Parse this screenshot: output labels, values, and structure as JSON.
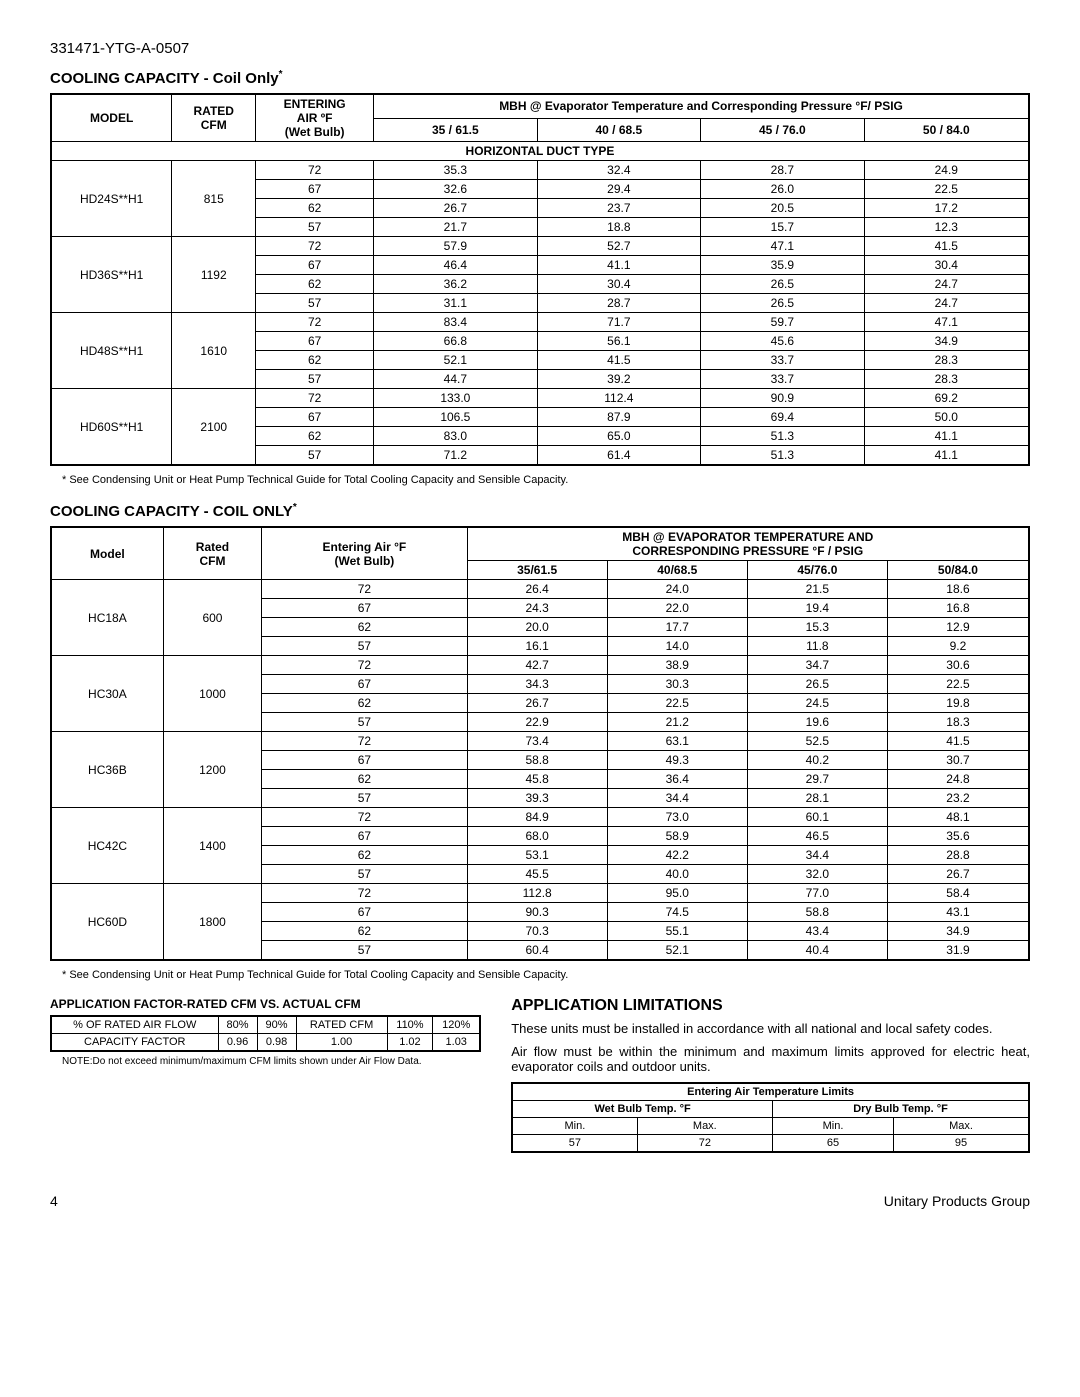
{
  "doc_id": "331471-YTG-A-0507",
  "section1": {
    "title": "COOLING CAPACITY - Coil Only",
    "asterisk": "*",
    "headers": {
      "model": "MODEL",
      "rated_cfm_line1": "RATED",
      "rated_cfm_line2": "CFM",
      "entering_line1": "ENTERING",
      "entering_line2": "AIR  ºF",
      "entering_line3": "(Wet Bulb)",
      "mbh": "MBH @ Evaporator Temperature and Corresponding Pressure °F/ PSIG",
      "col1": "35 / 61.5",
      "col2": "40 / 68.5",
      "col3": "45 / 76.0",
      "col4": "50 / 84.0",
      "section_label": "HORIZONTAL DUCT TYPE"
    },
    "groups": [
      {
        "model": "HD24S**H1",
        "cfm": "815",
        "rows": [
          {
            "wb": "72",
            "c1": "35.3",
            "c2": "32.4",
            "c3": "28.7",
            "c4": "24.9"
          },
          {
            "wb": "67",
            "c1": "32.6",
            "c2": "29.4",
            "c3": "26.0",
            "c4": "22.5"
          },
          {
            "wb": "62",
            "c1": "26.7",
            "c2": "23.7",
            "c3": "20.5",
            "c4": "17.2"
          },
          {
            "wb": "57",
            "c1": "21.7",
            "c2": "18.8",
            "c3": "15.7",
            "c4": "12.3"
          }
        ]
      },
      {
        "model": "HD36S**H1",
        "cfm": "1192",
        "rows": [
          {
            "wb": "72",
            "c1": "57.9",
            "c2": "52.7",
            "c3": "47.1",
            "c4": "41.5"
          },
          {
            "wb": "67",
            "c1": "46.4",
            "c2": "41.1",
            "c3": "35.9",
            "c4": "30.4"
          },
          {
            "wb": "62",
            "c1": "36.2",
            "c2": "30.4",
            "c3": "26.5",
            "c4": "24.7"
          },
          {
            "wb": "57",
            "c1": "31.1",
            "c2": "28.7",
            "c3": "26.5",
            "c4": "24.7"
          }
        ]
      },
      {
        "model": "HD48S**H1",
        "cfm": "1610",
        "rows": [
          {
            "wb": "72",
            "c1": "83.4",
            "c2": "71.7",
            "c3": "59.7",
            "c4": "47.1"
          },
          {
            "wb": "67",
            "c1": "66.8",
            "c2": "56.1",
            "c3": "45.6",
            "c4": "34.9"
          },
          {
            "wb": "62",
            "c1": "52.1",
            "c2": "41.5",
            "c3": "33.7",
            "c4": "28.3"
          },
          {
            "wb": "57",
            "c1": "44.7",
            "c2": "39.2",
            "c3": "33.7",
            "c4": "28.3"
          }
        ]
      },
      {
        "model": "HD60S**H1",
        "cfm": "2100",
        "rows": [
          {
            "wb": "72",
            "c1": "133.0",
            "c2": "112.4",
            "c3": "90.9",
            "c4": "69.2"
          },
          {
            "wb": "67",
            "c1": "106.5",
            "c2": "87.9",
            "c3": "69.4",
            "c4": "50.0"
          },
          {
            "wb": "62",
            "c1": "83.0",
            "c2": "65.0",
            "c3": "51.3",
            "c4": "41.1"
          },
          {
            "wb": "57",
            "c1": "71.2",
            "c2": "61.4",
            "c3": "51.3",
            "c4": "41.1"
          }
        ]
      }
    ],
    "footnote": "* See Condensing Unit or Heat Pump Technical Guide for Total Cooling Capacity and Sensible Capacity."
  },
  "section2": {
    "title": "COOLING CAPACITY - COIL ONLY",
    "asterisk": "*",
    "headers": {
      "model": "Model",
      "rated_cfm_line1": "Rated",
      "rated_cfm_line2": "CFM",
      "entering_line1": "Entering Air °F",
      "entering_line2": "(Wet Bulb)",
      "mbh_line1": "MBH @ EVAPORATOR TEMPERATURE AND",
      "mbh_line2": "CORRESPONDING PRESSURE °F / PSIG",
      "col1": "35/61.5",
      "col2": "40/68.5",
      "col3": "45/76.0",
      "col4": "50/84.0"
    },
    "groups": [
      {
        "model": "HC18A",
        "cfm": "600",
        "rows": [
          {
            "wb": "72",
            "c1": "26.4",
            "c2": "24.0",
            "c3": "21.5",
            "c4": "18.6"
          },
          {
            "wb": "67",
            "c1": "24.3",
            "c2": "22.0",
            "c3": "19.4",
            "c4": "16.8"
          },
          {
            "wb": "62",
            "c1": "20.0",
            "c2": "17.7",
            "c3": "15.3",
            "c4": "12.9"
          },
          {
            "wb": "57",
            "c1": "16.1",
            "c2": "14.0",
            "c3": "11.8",
            "c4": "9.2"
          }
        ]
      },
      {
        "model": "HC30A",
        "cfm": "1000",
        "rows": [
          {
            "wb": "72",
            "c1": "42.7",
            "c2": "38.9",
            "c3": "34.7",
            "c4": "30.6"
          },
          {
            "wb": "67",
            "c1": "34.3",
            "c2": "30.3",
            "c3": "26.5",
            "c4": "22.5"
          },
          {
            "wb": "62",
            "c1": "26.7",
            "c2": "22.5",
            "c3": "24.5",
            "c4": "19.8"
          },
          {
            "wb": "57",
            "c1": "22.9",
            "c2": "21.2",
            "c3": "19.6",
            "c4": "18.3"
          }
        ]
      },
      {
        "model": "HC36B",
        "cfm": "1200",
        "rows": [
          {
            "wb": "72",
            "c1": "73.4",
            "c2": "63.1",
            "c3": "52.5",
            "c4": "41.5"
          },
          {
            "wb": "67",
            "c1": "58.8",
            "c2": "49.3",
            "c3": "40.2",
            "c4": "30.7"
          },
          {
            "wb": "62",
            "c1": "45.8",
            "c2": "36.4",
            "c3": "29.7",
            "c4": "24.8"
          },
          {
            "wb": "57",
            "c1": "39.3",
            "c2": "34.4",
            "c3": "28.1",
            "c4": "23.2"
          }
        ]
      },
      {
        "model": "HC42C",
        "cfm": "1400",
        "rows": [
          {
            "wb": "72",
            "c1": "84.9",
            "c2": "73.0",
            "c3": "60.1",
            "c4": "48.1"
          },
          {
            "wb": "67",
            "c1": "68.0",
            "c2": "58.9",
            "c3": "46.5",
            "c4": "35.6"
          },
          {
            "wb": "62",
            "c1": "53.1",
            "c2": "42.2",
            "c3": "34.4",
            "c4": "28.8"
          },
          {
            "wb": "57",
            "c1": "45.5",
            "c2": "40.0",
            "c3": "32.0",
            "c4": "26.7"
          }
        ]
      },
      {
        "model": "HC60D",
        "cfm": "1800",
        "rows": [
          {
            "wb": "72",
            "c1": "112.8",
            "c2": "95.0",
            "c3": "77.0",
            "c4": "58.4"
          },
          {
            "wb": "67",
            "c1": "90.3",
            "c2": "74.5",
            "c3": "58.8",
            "c4": "43.1"
          },
          {
            "wb": "62",
            "c1": "70.3",
            "c2": "55.1",
            "c3": "43.4",
            "c4": "34.9"
          },
          {
            "wb": "57",
            "c1": "60.4",
            "c2": "52.1",
            "c3": "40.4",
            "c4": "31.9"
          }
        ]
      }
    ],
    "footnote": "* See Condensing Unit or Heat Pump Technical Guide for Total Cooling Capacity and Sensible Capacity."
  },
  "app_factor": {
    "title": "APPLICATION FACTOR-RATED CFM VS. ACTUAL CFM",
    "row1": [
      "% OF RATED AIR FLOW",
      "80%",
      "90%",
      "RATED CFM",
      "110%",
      "120%"
    ],
    "row2": [
      "CAPACITY FACTOR",
      "0.96",
      "0.98",
      "1.00",
      "1.02",
      "1.03"
    ],
    "note": "NOTE:Do not exceed minimum/maximum CFM limits shown under Air Flow Data."
  },
  "app_limits": {
    "title": "APPLICATION LIMITATIONS",
    "p1": "These units must be installed in accordance with all national and local safety codes.",
    "p2": "Air flow must be within the minimum and maximum limits approved for electric heat, evaporator coils and outdoor units.",
    "table_title": "Entering Air Temperature Limits",
    "h_wet": "Wet Bulb Temp. °F",
    "h_dry": "Dry Bulb Temp. °F",
    "min": "Min.",
    "max": "Max.",
    "vals": [
      "57",
      "72",
      "65",
      "95"
    ]
  },
  "footer": {
    "page": "4",
    "right": "Unitary Products Group"
  }
}
